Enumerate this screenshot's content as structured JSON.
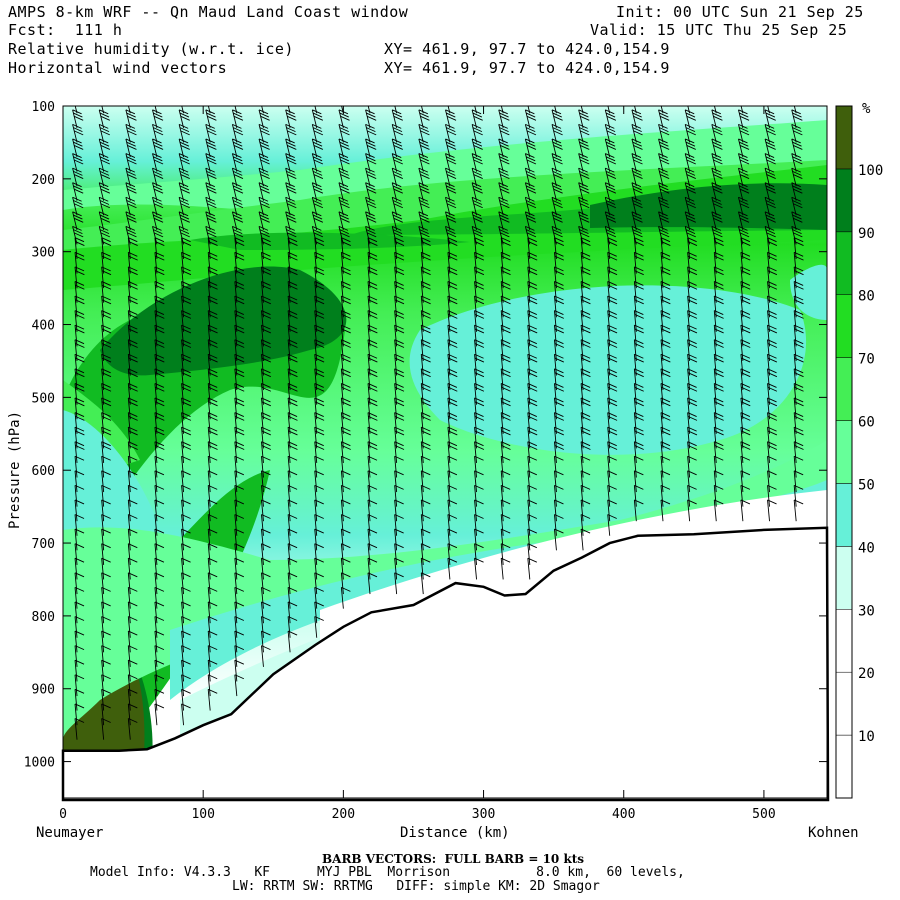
{
  "header": {
    "title": "AMPS 8-km WRF -- Qn Maud Land Coast window",
    "init": "Init: 00 UTC Sun 21 Sep 25",
    "fcst": "Fcst:  111 h",
    "valid": "Valid: 15 UTC Thu 25 Sep 25",
    "field1": "Relative humidity (w.r.t. ice)",
    "field2": "Horizontal wind vectors",
    "xy1": "XY= 461.9, 97.7 to 424.0,154.9",
    "xy2": "XY= 461.9, 97.7 to 424.0,154.9"
  },
  "footer": {
    "barb_note": "BARB VECTORS:  FULL BARB = 10 kts",
    "model_line1": "Model Info: V4.3.3   KF      MYJ PBL  Morrison           8.0 km,  60 levels,",
    "model_line2": "LW: RRTM SW: RRTMG   DIFF: simple KM: 2D Smagor"
  },
  "chart_data": {
    "type": "heatmap",
    "title": "Relative humidity (w.r.t. ice)",
    "xlabel": "Distance (km)",
    "ylabel": "Pressure (hPa)",
    "x_ticks": [
      "0",
      "100",
      "200",
      "300",
      "400",
      "500"
    ],
    "y_ticks": [
      "100",
      "200",
      "300",
      "400",
      "500",
      "600",
      "700",
      "800",
      "900",
      "1000"
    ],
    "xlim": [
      0,
      545
    ],
    "ylim": [
      100,
      1050
    ],
    "x_end_labels": {
      "left": "Neumayer",
      "right": "Kohnen"
    },
    "colorbar": {
      "unit": "%",
      "ticks": [
        "10",
        "20",
        "30",
        "40",
        "50",
        "60",
        "70",
        "80",
        "90",
        "100"
      ],
      "levels": [
        0,
        10,
        20,
        30,
        40,
        50,
        60,
        70,
        80,
        90,
        100
      ],
      "colors": [
        "#ffffff",
        "#ffffff",
        "#ffffff",
        "#ccfff0",
        "#66f0d8",
        "#66ff99",
        "#44ee55",
        "#22dd22",
        "#11bb22",
        "#007f1c",
        "#3f5f0c"
      ]
    },
    "terrain_hPa": {
      "x": [
        0,
        20,
        40,
        60,
        80,
        100,
        120,
        150,
        180,
        200,
        220,
        250,
        280,
        300,
        315,
        330,
        350,
        370,
        390,
        410,
        450,
        500,
        545
      ],
      "y": [
        985,
        985,
        985,
        983,
        968,
        950,
        935,
        880,
        840,
        815,
        795,
        785,
        755,
        760,
        772,
        770,
        738,
        720,
        700,
        690,
        688,
        682,
        679
      ]
    }
  }
}
